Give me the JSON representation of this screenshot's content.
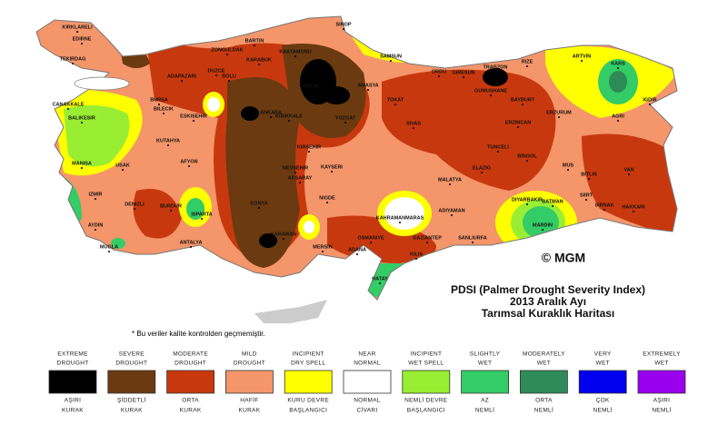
{
  "title": {
    "lines": [
      "PDSI (Palmer Drought Severity Index)",
      "2013 Aralık Ayı",
      "Tarımsal Kuraklık Haritası"
    ],
    "copyright": "© MGM"
  },
  "note": "* Bu veriler kalite kontrolden geçmemiştir.",
  "cities": [
    "KIRKLARELI",
    "EDIRNE",
    "TEKIRDAG",
    "SINOP",
    "BARTIN",
    "ZONGULDAK",
    "KARABUK",
    "KASTAMONU",
    "SAMSUN",
    "ORDU",
    "GIRESUN",
    "TRABZON",
    "RIZE",
    "ARTVIN",
    "KARS",
    "IGDIR",
    "ADAPAZARI",
    "DUZCE",
    "BOLU",
    "BURSA",
    "BILECIK",
    "ESKISEHIR",
    "ANKARA",
    "KIRIKKALE",
    "CORUM",
    "AMASYA",
    "TOKAT",
    "YOZGAT",
    "SIVAS",
    "GUMUSHANE",
    "BAYBURT",
    "ERZINCAN",
    "ERZURUM",
    "AGRI",
    "BALIKESIR",
    "CANAKKALE",
    "KUTAHYA",
    "KIRSEHIR",
    "TUNCELI",
    "BINGOL",
    "MUS",
    "BITLIS",
    "VAN",
    "HAKKARI",
    "SIRNAK",
    "SIIRT",
    "BATMAN",
    "DIYARBAKIR",
    "MARDIN",
    "MANISA",
    "USAK",
    "AFYON",
    "NEVSEHIR",
    "KAYSERI",
    "MALATYA",
    "ELAZIG",
    "AKSARAY",
    "IZMIR",
    "DENIZLI",
    "BURDUR",
    "ISPARTA",
    "KONYA",
    "NIGDE",
    "KAHRAMANMARAS",
    "ADIYAMAN",
    "AYDIN",
    "MUGLA",
    "ANTALYA",
    "KARAMAN",
    "MERSIN",
    "ADANA",
    "OSMANIYE",
    "GAZIANTEP",
    "SANLIURFA",
    "KILIS",
    "HATAY"
  ],
  "legend": [
    {
      "top": [
        "EXTREME",
        "DROUGHT"
      ],
      "bottom": [
        "AŞIRI",
        "KURAK"
      ],
      "color": "#000000"
    },
    {
      "top": [
        "SEVERE",
        "DROUGHT"
      ],
      "bottom": [
        "ŞİDDETLİ",
        "KURAK"
      ],
      "color": "#6b3a10"
    },
    {
      "top": [
        "MODERATE",
        "DROUGHT"
      ],
      "bottom": [
        "ORTA",
        "KURAK"
      ],
      "color": "#c8380e"
    },
    {
      "top": [
        "MILD",
        "DROUGHT"
      ],
      "bottom": [
        "HAFİF",
        "KURAK"
      ],
      "color": "#f4956a"
    },
    {
      "top": [
        "INCIPIENT",
        "DRY SPELL"
      ],
      "bottom": [
        "KURU DEVRE",
        "BAŞLANGICI"
      ],
      "color": "#ffff00"
    },
    {
      "top": [
        "NEAR",
        "NORMAL"
      ],
      "bottom": [
        "NORMAL",
        "CİVARI"
      ],
      "color": "#ffffff"
    },
    {
      "top": [
        "INCIPIENT",
        "WET SPELL"
      ],
      "bottom": [
        "NEMLİ DEVRE",
        "BAŞLANGICI"
      ],
      "color": "#99ee33"
    },
    {
      "top": [
        "SLIGHTLY",
        "WET"
      ],
      "bottom": [
        "AZ",
        "NEMLİ"
      ],
      "color": "#33cc66"
    },
    {
      "top": [
        "MODERATELY",
        "WET"
      ],
      "bottom": [
        "ORTA",
        "NEMLİ"
      ],
      "color": "#2e8b57"
    },
    {
      "top": [
        "VERY",
        "WET"
      ],
      "bottom": [
        "ÇOK",
        "NEMLİ"
      ],
      "color": "#0000ee"
    },
    {
      "top": [
        "EXTREMELY",
        "WET"
      ],
      "bottom": [
        "AŞIRI",
        "NEMLİ"
      ],
      "color": "#9900ee"
    }
  ]
}
